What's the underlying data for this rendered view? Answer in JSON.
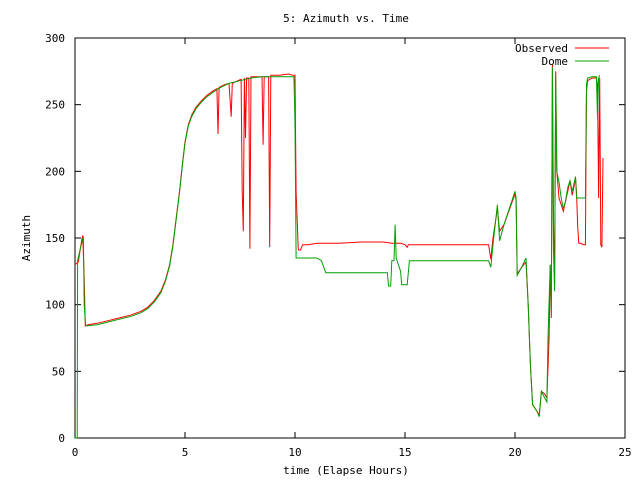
{
  "chart_data": {
    "type": "line",
    "title": "5: Azimuth vs. Time",
    "xlabel": "time (Elapse Hours)",
    "ylabel": "Azimuth",
    "xlim": [
      0,
      25
    ],
    "ylim": [
      0,
      300
    ],
    "xticks": [
      0,
      5,
      10,
      15,
      20,
      25
    ],
    "yticks": [
      0,
      50,
      100,
      150,
      200,
      250,
      300
    ],
    "legend_position": "top-right",
    "grid": false,
    "series": [
      {
        "name": "Observed",
        "color": "#ff0000",
        "points": [
          [
            0.0,
            130
          ],
          [
            0.15,
            132
          ],
          [
            0.3,
            148
          ],
          [
            0.35,
            152
          ],
          [
            0.42,
            120
          ],
          [
            0.47,
            84
          ],
          [
            0.6,
            85
          ],
          [
            1.0,
            86
          ],
          [
            1.5,
            88
          ],
          [
            2.0,
            90
          ],
          [
            2.5,
            92
          ],
          [
            3.0,
            95
          ],
          [
            3.3,
            98
          ],
          [
            3.6,
            103
          ],
          [
            3.9,
            110
          ],
          [
            4.1,
            118
          ],
          [
            4.3,
            130
          ],
          [
            4.45,
            145
          ],
          [
            4.6,
            165
          ],
          [
            4.75,
            185
          ],
          [
            4.9,
            208
          ],
          [
            5.0,
            222
          ],
          [
            5.15,
            235
          ],
          [
            5.3,
            242
          ],
          [
            5.5,
            248
          ],
          [
            5.75,
            253
          ],
          [
            6.0,
            257
          ],
          [
            6.25,
            260
          ],
          [
            6.45,
            262
          ],
          [
            6.5,
            228
          ],
          [
            6.55,
            263
          ],
          [
            6.8,
            265
          ],
          [
            7.0,
            266
          ],
          [
            7.1,
            241
          ],
          [
            7.15,
            266
          ],
          [
            7.4,
            268
          ],
          [
            7.55,
            269
          ],
          [
            7.6,
            185
          ],
          [
            7.65,
            155
          ],
          [
            7.7,
            270
          ],
          [
            7.75,
            225
          ],
          [
            7.8,
            270
          ],
          [
            7.9,
            270
          ],
          [
            7.95,
            142
          ],
          [
            8.0,
            271
          ],
          [
            8.3,
            271
          ],
          [
            8.5,
            271
          ],
          [
            8.55,
            220
          ],
          [
            8.6,
            271
          ],
          [
            8.8,
            271
          ],
          [
            8.85,
            143
          ],
          [
            8.9,
            272
          ],
          [
            9.3,
            272
          ],
          [
            9.7,
            273
          ],
          [
            9.9,
            272
          ],
          [
            10.0,
            272
          ],
          [
            10.05,
            185
          ],
          [
            10.15,
            141
          ],
          [
            10.25,
            141
          ],
          [
            10.35,
            145
          ],
          [
            10.6,
            145
          ],
          [
            11.0,
            146
          ],
          [
            12.0,
            146
          ],
          [
            13.0,
            147
          ],
          [
            13.5,
            147
          ],
          [
            14.0,
            147
          ],
          [
            14.4,
            146
          ],
          [
            14.6,
            146
          ],
          [
            14.8,
            146
          ],
          [
            15.0,
            145
          ],
          [
            15.1,
            143
          ],
          [
            15.15,
            145
          ],
          [
            16.0,
            145
          ],
          [
            17.0,
            145
          ],
          [
            18.0,
            145
          ],
          [
            18.8,
            145
          ],
          [
            18.9,
            134
          ],
          [
            19.0,
            150
          ],
          [
            19.2,
            172
          ],
          [
            19.3,
            155
          ],
          [
            19.5,
            160
          ],
          [
            20.0,
            183
          ],
          [
            20.05,
            178
          ],
          [
            20.1,
            123
          ],
          [
            20.3,
            128
          ],
          [
            20.5,
            132
          ],
          [
            20.6,
            100
          ],
          [
            20.7,
            55
          ],
          [
            20.8,
            25
          ],
          [
            21.0,
            20
          ],
          [
            21.1,
            17
          ],
          [
            21.2,
            35
          ],
          [
            21.35,
            33
          ],
          [
            21.45,
            30
          ],
          [
            21.55,
            75
          ],
          [
            21.6,
            130
          ],
          [
            21.65,
            90
          ],
          [
            21.7,
            280
          ],
          [
            21.75,
            160
          ],
          [
            21.8,
            115
          ],
          [
            21.85,
            275
          ],
          [
            21.9,
            200
          ],
          [
            22.0,
            180
          ],
          [
            22.2,
            170
          ],
          [
            22.3,
            178
          ],
          [
            22.4,
            185
          ],
          [
            22.5,
            193
          ],
          [
            22.6,
            182
          ],
          [
            22.7,
            190
          ],
          [
            22.75,
            196
          ],
          [
            22.8,
            183
          ],
          [
            22.85,
            158
          ],
          [
            22.9,
            146
          ],
          [
            23.0,
            146
          ],
          [
            23.1,
            145
          ],
          [
            23.2,
            145
          ],
          [
            23.25,
            260
          ],
          [
            23.3,
            268
          ],
          [
            23.5,
            270
          ],
          [
            23.7,
            270
          ],
          [
            23.75,
            265
          ],
          [
            23.8,
            180
          ],
          [
            23.85,
            270
          ],
          [
            23.9,
            145
          ],
          [
            23.95,
            143
          ],
          [
            24.0,
            210
          ]
        ]
      },
      {
        "name": "Dome",
        "color": "#00a000",
        "points": [
          [
            0.0,
            0
          ],
          [
            0.1,
            0
          ],
          [
            0.12,
            133
          ],
          [
            0.3,
            146
          ],
          [
            0.38,
            151
          ],
          [
            0.42,
            100
          ],
          [
            0.48,
            84
          ],
          [
            1.0,
            85
          ],
          [
            1.5,
            87
          ],
          [
            2.0,
            89
          ],
          [
            2.5,
            91
          ],
          [
            3.0,
            94
          ],
          [
            3.3,
            97
          ],
          [
            3.6,
            102
          ],
          [
            3.9,
            109
          ],
          [
            4.1,
            117
          ],
          [
            4.3,
            129
          ],
          [
            4.45,
            144
          ],
          [
            4.6,
            164
          ],
          [
            4.75,
            184
          ],
          [
            4.9,
            207
          ],
          [
            5.0,
            221
          ],
          [
            5.15,
            234
          ],
          [
            5.3,
            241
          ],
          [
            5.5,
            247
          ],
          [
            5.75,
            252
          ],
          [
            6.0,
            256
          ],
          [
            6.5,
            262
          ],
          [
            7.0,
            266
          ],
          [
            7.5,
            268
          ],
          [
            8.0,
            270
          ],
          [
            8.5,
            271
          ],
          [
            9.0,
            271
          ],
          [
            9.5,
            271
          ],
          [
            9.9,
            271
          ],
          [
            9.95,
            271
          ],
          [
            10.0,
            235
          ],
          [
            10.05,
            135
          ],
          [
            10.5,
            135
          ],
          [
            11.0,
            135
          ],
          [
            11.2,
            133
          ],
          [
            11.4,
            124
          ],
          [
            12.0,
            124
          ],
          [
            13.0,
            124
          ],
          [
            13.8,
            124
          ],
          [
            14.2,
            124
          ],
          [
            14.25,
            114
          ],
          [
            14.35,
            114
          ],
          [
            14.4,
            133
          ],
          [
            14.5,
            133
          ],
          [
            14.55,
            160
          ],
          [
            14.6,
            135
          ],
          [
            14.7,
            130
          ],
          [
            14.8,
            125
          ],
          [
            14.85,
            115
          ],
          [
            15.1,
            115
          ],
          [
            15.2,
            133
          ],
          [
            16.0,
            133
          ],
          [
            17.0,
            133
          ],
          [
            18.0,
            133
          ],
          [
            18.8,
            133
          ],
          [
            18.9,
            128
          ],
          [
            19.0,
            145
          ],
          [
            19.2,
            175
          ],
          [
            19.3,
            148
          ],
          [
            19.5,
            160
          ],
          [
            20.0,
            185
          ],
          [
            20.05,
            180
          ],
          [
            20.1,
            122
          ],
          [
            20.3,
            128
          ],
          [
            20.5,
            135
          ],
          [
            20.6,
            100
          ],
          [
            20.7,
            55
          ],
          [
            20.8,
            25
          ],
          [
            21.0,
            20
          ],
          [
            21.1,
            16
          ],
          [
            21.2,
            35
          ],
          [
            21.35,
            30
          ],
          [
            21.45,
            27
          ],
          [
            21.5,
            75
          ],
          [
            21.6,
            130
          ],
          [
            21.65,
            95
          ],
          [
            21.7,
            278
          ],
          [
            21.75,
            140
          ],
          [
            21.8,
            110
          ],
          [
            21.85,
            272
          ],
          [
            21.9,
            200
          ],
          [
            22.0,
            192
          ],
          [
            22.1,
            180
          ],
          [
            22.2,
            172
          ],
          [
            22.3,
            178
          ],
          [
            22.4,
            188
          ],
          [
            22.5,
            193
          ],
          [
            22.6,
            185
          ],
          [
            22.7,
            192
          ],
          [
            22.75,
            196
          ],
          [
            22.8,
            180
          ],
          [
            23.2,
            180
          ],
          [
            23.25,
            265
          ],
          [
            23.3,
            270
          ],
          [
            23.5,
            271
          ],
          [
            23.7,
            271
          ],
          [
            23.75,
            240
          ],
          [
            23.8,
            270
          ],
          [
            23.85,
            272
          ]
        ]
      }
    ]
  }
}
